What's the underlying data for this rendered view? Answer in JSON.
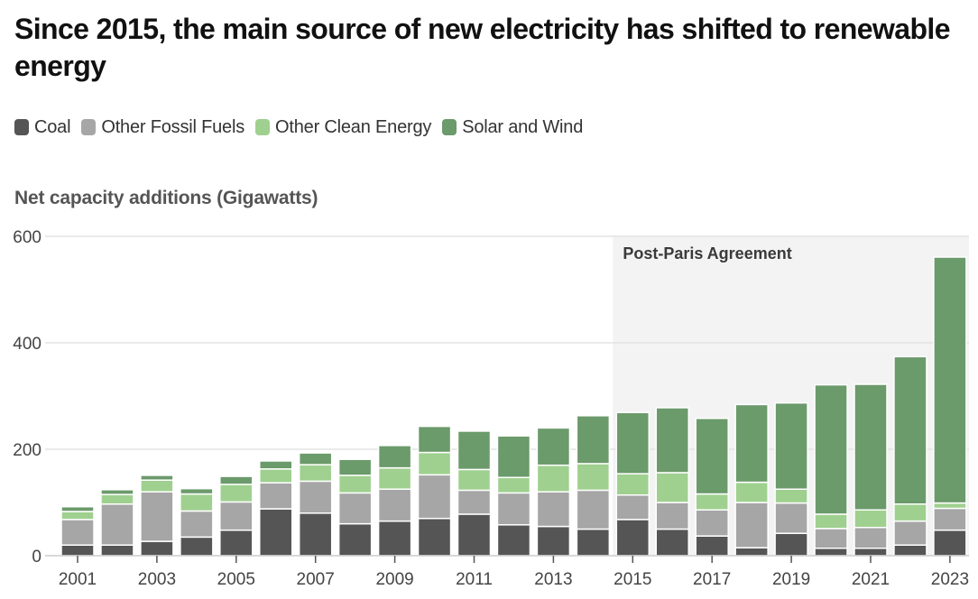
{
  "title": "Since 2015, the main source of new electricity has shifted to renewable energy",
  "legend": [
    {
      "label": "Coal",
      "color": "#555555"
    },
    {
      "label": "Other Fossil Fuels",
      "color": "#a6a6a6"
    },
    {
      "label": "Other Clean Energy",
      "color": "#9fd08f"
    },
    {
      "label": "Solar and Wind",
      "color": "#6b9a6b"
    }
  ],
  "chart_data": {
    "type": "bar",
    "stacked": true,
    "ylabel": "Net capacity additions (Gigawatts)",
    "ylim": [
      0,
      600
    ],
    "yticks": [
      0,
      200,
      400,
      600
    ],
    "grid": true,
    "x": [
      2001,
      2002,
      2003,
      2004,
      2005,
      2006,
      2007,
      2008,
      2009,
      2010,
      2011,
      2012,
      2013,
      2014,
      2015,
      2016,
      2017,
      2018,
      2019,
      2020,
      2021,
      2022,
      2023
    ],
    "xtick_labels": [
      "2001",
      "2003",
      "2005",
      "2007",
      "2009",
      "2011",
      "2013",
      "2015",
      "2017",
      "2019",
      "2021",
      "2023"
    ],
    "series": [
      {
        "name": "Coal",
        "color": "#555555",
        "values": [
          20,
          20,
          27,
          35,
          48,
          88,
          80,
          60,
          65,
          70,
          78,
          58,
          55,
          50,
          68,
          50,
          37,
          15,
          42,
          14,
          14,
          20,
          48
        ]
      },
      {
        "name": "Other Fossil Fuels",
        "color": "#a6a6a6",
        "values": [
          48,
          77,
          93,
          49,
          53,
          49,
          60,
          58,
          60,
          82,
          45,
          60,
          65,
          73,
          46,
          50,
          49,
          85,
          57,
          37,
          39,
          45,
          41
        ]
      },
      {
        "name": "Other Clean Energy",
        "color": "#9fd08f",
        "values": [
          15,
          18,
          22,
          32,
          33,
          26,
          31,
          33,
          40,
          42,
          39,
          29,
          50,
          50,
          40,
          56,
          30,
          38,
          26,
          27,
          33,
          32,
          10
        ]
      },
      {
        "name": "Solar and Wind",
        "color": "#6b9a6b",
        "values": [
          9,
          9,
          9,
          10,
          15,
          15,
          22,
          30,
          42,
          49,
          72,
          78,
          70,
          90,
          115,
          122,
          142,
          146,
          162,
          243,
          236,
          277,
          462
        ]
      }
    ],
    "annotation": {
      "label": "Post-Paris Agreement",
      "from": 2015,
      "to": 2023
    }
  }
}
